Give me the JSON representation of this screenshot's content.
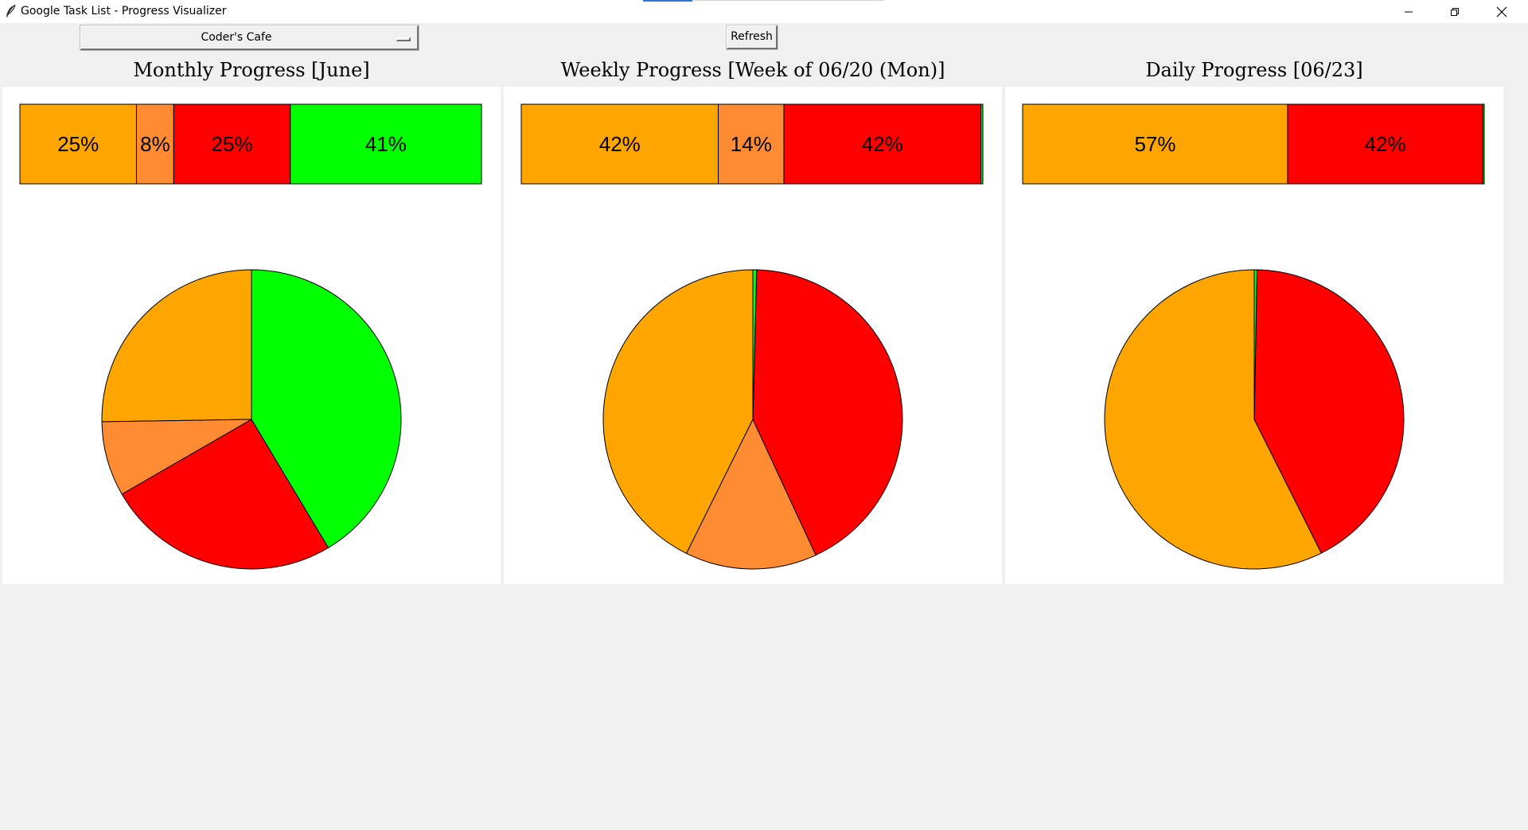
{
  "window": {
    "title": "Google Task List - Progress Visualizer",
    "icon": "feather-icon",
    "controls": [
      "minimize-icon",
      "restore-icon",
      "close-icon"
    ]
  },
  "toolbar": {
    "list_selected": "Coder's Cafe",
    "refresh_label": "Refresh"
  },
  "colors": {
    "orange": "#ffa500",
    "light_orange": "#ff8c33",
    "red": "#ff0000",
    "green": "#00ff00"
  },
  "chart_data": [
    {
      "type": "pie",
      "title": "Monthly Progress [June]",
      "values": [
        25,
        8,
        25,
        41
      ],
      "bar_labels": [
        "25%",
        "8%",
        "25%",
        "41%"
      ],
      "colors": [
        "#ffa500",
        "#ff8c33",
        "#ff0000",
        "#00ff00"
      ]
    },
    {
      "type": "pie",
      "title": "Weekly Progress [Week of 06/20 (Mon)]",
      "values": [
        42,
        14,
        42,
        0.4
      ],
      "bar_labels": [
        "42%",
        "14%",
        "42%",
        ""
      ],
      "colors": [
        "#ffa500",
        "#ff8c33",
        "#ff0000",
        "#00ff00"
      ]
    },
    {
      "type": "pie",
      "title": "Daily Progress [06/23]",
      "values": [
        57,
        42,
        0.3
      ],
      "bar_labels": [
        "57%",
        "42%",
        ""
      ],
      "colors": [
        "#ffa500",
        "#ff0000",
        "#00ff00"
      ]
    }
  ]
}
